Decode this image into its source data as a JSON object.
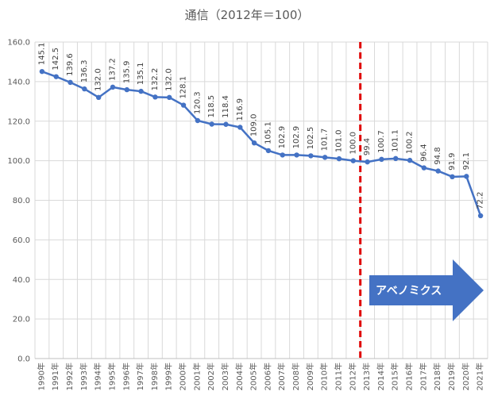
{
  "chart_data": {
    "type": "line",
    "title": "通信（2012年＝100）",
    "xlabel": "",
    "ylabel": "",
    "ylim": [
      0,
      160
    ],
    "ytick_step": 20,
    "ytick_labels": [
      "0.0",
      "20.0",
      "40.0",
      "60.0",
      "80.0",
      "100.0",
      "120.0",
      "140.0",
      "160.0"
    ],
    "grid": true,
    "legend": "none",
    "categories": [
      "1990年",
      "1991年",
      "1992年",
      "1993年",
      "1994年",
      "1995年",
      "1996年",
      "1997年",
      "1998年",
      "1999年",
      "2000年",
      "2001年",
      "2002年",
      "2003年",
      "2004年",
      "2005年",
      "2006年",
      "2007年",
      "2008年",
      "2009年",
      "2010年",
      "2011年",
      "2012年",
      "2013年",
      "2014年",
      "2015年",
      "2016年",
      "2017年",
      "2018年",
      "2019年",
      "2020年",
      "2021年"
    ],
    "series": [
      {
        "values": [
          145.1,
          142.5,
          139.6,
          136.3,
          132.0,
          137.2,
          135.9,
          135.1,
          132.2,
          132.0,
          128.1,
          120.3,
          118.5,
          118.4,
          116.9,
          109.0,
          105.1,
          102.9,
          102.9,
          102.5,
          101.7,
          101.0,
          100.0,
          99.4,
          100.7,
          101.1,
          100.2,
          96.4,
          94.8,
          91.9,
          92.1,
          72.2
        ],
        "labels": [
          "145.1",
          "142.5",
          "139.6",
          "136.3",
          "132.0",
          "137.2",
          "135.9",
          "135.1",
          "132.2",
          "132.0",
          "128.1",
          "120.3",
          "118.5",
          "118.4",
          "116.9",
          "109.0",
          "105.1",
          "102.9",
          "102.9",
          "102.5",
          "101.7",
          "101.0",
          "100.0",
          "99.4",
          "100.7",
          "101.1",
          "100.2",
          "96.4",
          "94.8",
          "91.9",
          "92.1",
          "72.2"
        ],
        "color": "#4472c4"
      }
    ],
    "marker_line": {
      "between": [
        "2012年",
        "2013年"
      ],
      "color": "#e00000",
      "style": "dashed"
    },
    "annotation": {
      "text": "アベノミクス",
      "fill": "#4472c4"
    }
  }
}
